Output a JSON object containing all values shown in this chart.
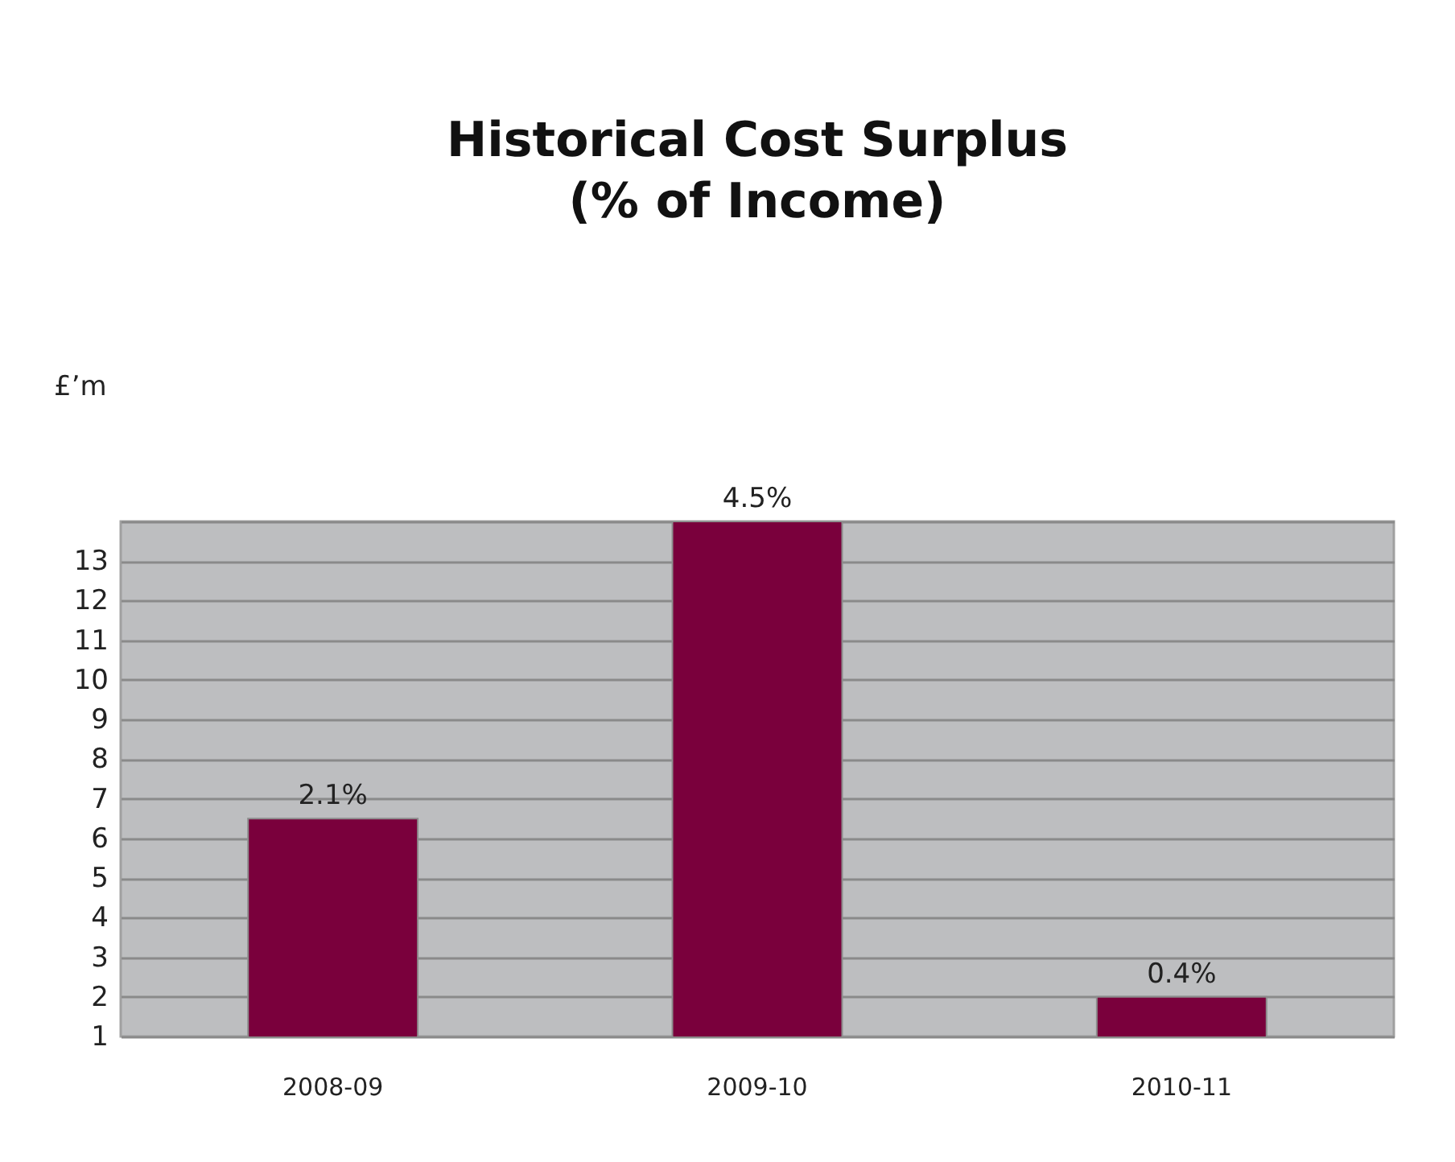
{
  "chart_data": {
    "type": "bar",
    "title": [
      "Historical Cost Surplus",
      "(% of Income)"
    ],
    "ylabel": "£’m",
    "categories": [
      "2008-09",
      "2009-10",
      "2010-11"
    ],
    "values": [
      6.5,
      14,
      2
    ],
    "annotations": [
      {
        "text": "2.1%",
        "x": "2008-09",
        "y": 6.5
      },
      {
        "text": "4.5%",
        "x": "2009-10",
        "y": 14
      },
      {
        "text": "0.4%",
        "x": "2010-11",
        "y": 2
      }
    ],
    "color": "#7a003c",
    "ylim": [
      1,
      14
    ],
    "yticks": [
      1,
      2,
      3,
      4,
      5,
      6,
      7,
      8,
      9,
      10,
      11,
      12,
      13,
      {
        "value": 14,
        "label": null
      }
    ],
    "grid": true
  }
}
